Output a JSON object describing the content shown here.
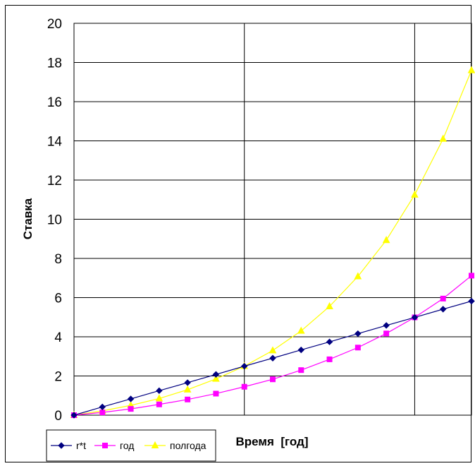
{
  "chart_data": {
    "type": "line",
    "title": "",
    "xlabel": "Время  [год]",
    "ylabel": "Ставка",
    "ylim": [
      0,
      20
    ],
    "yticks": [
      "0",
      "2",
      "4",
      "6",
      "8",
      "10",
      "12",
      "14",
      "16",
      "18",
      "20"
    ],
    "x": [
      0,
      1,
      2,
      3,
      4,
      5,
      6,
      7,
      8,
      9,
      10,
      11,
      12,
      13,
      14
    ],
    "grid": true,
    "legend_position": "bottom-left",
    "series": [
      {
        "name": "r*t",
        "color": "#000080",
        "marker": "diamond",
        "values": [
          0,
          0.42,
          0.83,
          1.25,
          1.66,
          2.08,
          2.5,
          2.91,
          3.33,
          3.74,
          4.16,
          4.58,
          4.99,
          5.41,
          5.82
        ]
      },
      {
        "name": "год",
        "color": "#ff00ff",
        "marker": "square",
        "values": [
          0,
          0.14,
          0.32,
          0.55,
          0.8,
          1.1,
          1.45,
          1.83,
          2.3,
          2.85,
          3.45,
          4.17,
          4.99,
          5.95,
          7.12
        ]
      },
      {
        "name": "полгода",
        "color": "#ffff00",
        "marker": "triangle",
        "values": [
          0,
          0.22,
          0.5,
          0.85,
          1.3,
          1.85,
          2.5,
          3.3,
          4.3,
          5.55,
          7.08,
          8.93,
          11.25,
          14.1,
          17.6
        ]
      }
    ]
  }
}
